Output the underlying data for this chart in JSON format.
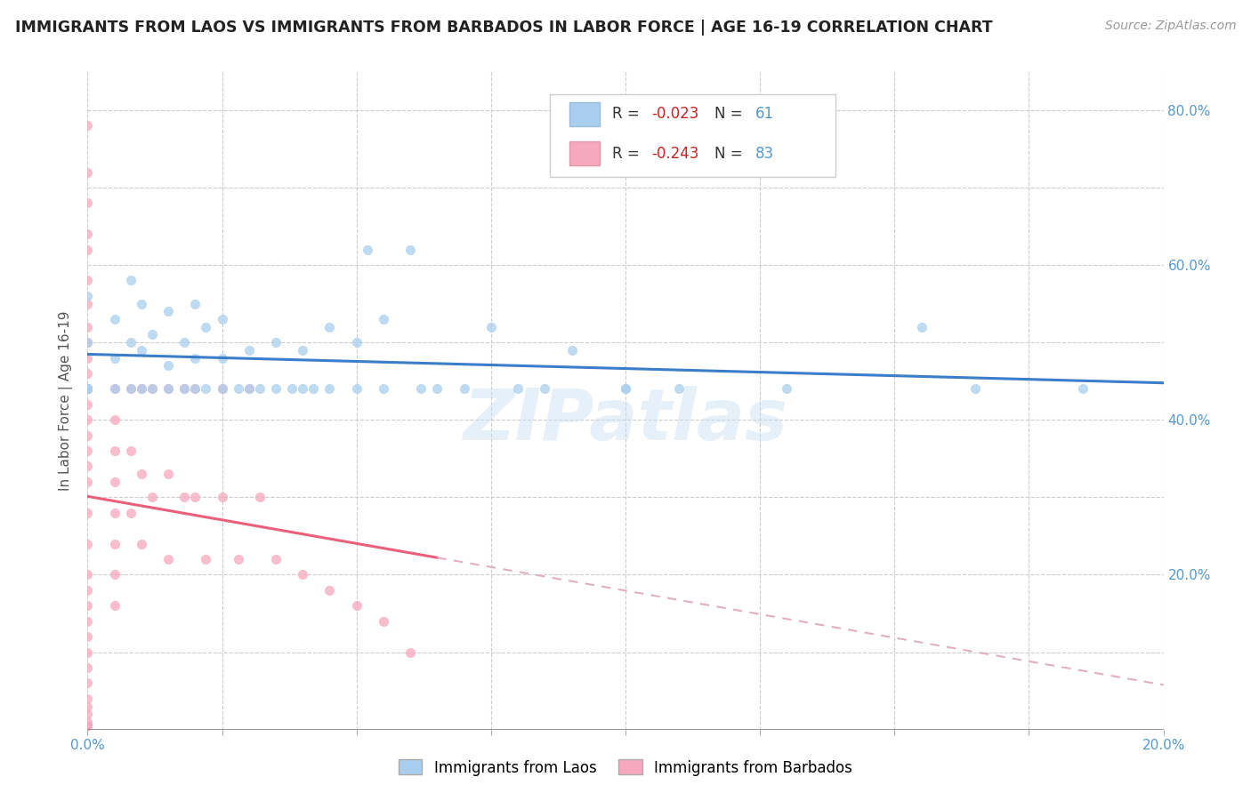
{
  "title": "IMMIGRANTS FROM LAOS VS IMMIGRANTS FROM BARBADOS IN LABOR FORCE | AGE 16-19 CORRELATION CHART",
  "source": "Source: ZipAtlas.com",
  "ylabel": "In Labor Force | Age 16-19",
  "xlim": [
    0.0,
    0.2
  ],
  "ylim": [
    0.0,
    0.85
  ],
  "xticks": [
    0.0,
    0.025,
    0.05,
    0.075,
    0.1,
    0.125,
    0.15,
    0.175,
    0.2
  ],
  "yticks": [
    0.0,
    0.1,
    0.2,
    0.3,
    0.4,
    0.5,
    0.6,
    0.7,
    0.8
  ],
  "xtick_labels": [
    "0.0%",
    "",
    "",
    "",
    "",
    "",
    "",
    "",
    "20.0%"
  ],
  "ytick_labels_right": [
    "",
    "",
    "20.0%",
    "",
    "40.0%",
    "",
    "60.0%",
    "",
    "80.0%"
  ],
  "laos_R": -0.023,
  "laos_N": 61,
  "barbados_R": -0.243,
  "barbados_N": 83,
  "laos_color": "#aacfee",
  "barbados_color": "#f8a8be",
  "laos_line_color": "#3a7dc9",
  "barbados_line_color": "#e8607a",
  "barbados_dash_color": "#e0b0c0",
  "watermark": "ZIPatlas",
  "legend_label_laos": "Immigrants from Laos",
  "legend_label_barbados": "Immigrants from Barbados",
  "laos_x": [
    0.0,
    0.0,
    0.0,
    0.0,
    0.0,
    0.005,
    0.005,
    0.005,
    0.008,
    0.008,
    0.008,
    0.01,
    0.01,
    0.01,
    0.012,
    0.012,
    0.015,
    0.015,
    0.015,
    0.018,
    0.018,
    0.02,
    0.02,
    0.02,
    0.022,
    0.022,
    0.025,
    0.025,
    0.025,
    0.028,
    0.03,
    0.03,
    0.032,
    0.035,
    0.035,
    0.038,
    0.04,
    0.04,
    0.042,
    0.045,
    0.045,
    0.05,
    0.05,
    0.052,
    0.055,
    0.055,
    0.06,
    0.062,
    0.065,
    0.07,
    0.075,
    0.08,
    0.085,
    0.09,
    0.1,
    0.1,
    0.11,
    0.13,
    0.155,
    0.165,
    0.185
  ],
  "laos_y": [
    0.44,
    0.44,
    0.44,
    0.5,
    0.56,
    0.44,
    0.48,
    0.53,
    0.44,
    0.5,
    0.58,
    0.44,
    0.49,
    0.55,
    0.44,
    0.51,
    0.44,
    0.47,
    0.54,
    0.44,
    0.5,
    0.44,
    0.48,
    0.55,
    0.44,
    0.52,
    0.44,
    0.48,
    0.53,
    0.44,
    0.44,
    0.49,
    0.44,
    0.44,
    0.5,
    0.44,
    0.44,
    0.49,
    0.44,
    0.44,
    0.52,
    0.44,
    0.5,
    0.62,
    0.44,
    0.53,
    0.62,
    0.44,
    0.44,
    0.44,
    0.52,
    0.44,
    0.44,
    0.49,
    0.44,
    0.44,
    0.44,
    0.44,
    0.52,
    0.44,
    0.44
  ],
  "barbados_x": [
    0.0,
    0.0,
    0.0,
    0.0,
    0.0,
    0.0,
    0.0,
    0.0,
    0.0,
    0.0,
    0.0,
    0.0,
    0.0,
    0.0,
    0.0,
    0.0,
    0.0,
    0.0,
    0.0,
    0.0,
    0.0,
    0.0,
    0.0,
    0.0,
    0.0,
    0.0,
    0.0,
    0.0,
    0.0,
    0.0,
    0.0,
    0.0,
    0.0,
    0.0,
    0.0,
    0.0,
    0.0,
    0.0,
    0.0,
    0.0,
    0.0,
    0.0,
    0.0,
    0.0,
    0.0,
    0.0,
    0.0,
    0.0,
    0.005,
    0.005,
    0.005,
    0.005,
    0.005,
    0.005,
    0.005,
    0.005,
    0.008,
    0.008,
    0.008,
    0.01,
    0.01,
    0.01,
    0.012,
    0.012,
    0.015,
    0.015,
    0.015,
    0.018,
    0.018,
    0.02,
    0.02,
    0.022,
    0.025,
    0.025,
    0.028,
    0.03,
    0.032,
    0.035,
    0.04,
    0.045,
    0.05,
    0.055,
    0.06
  ],
  "barbados_y": [
    0.78,
    0.72,
    0.68,
    0.64,
    0.62,
    0.58,
    0.55,
    0.52,
    0.5,
    0.48,
    0.46,
    0.44,
    0.44,
    0.44,
    0.44,
    0.44,
    0.44,
    0.44,
    0.42,
    0.4,
    0.38,
    0.36,
    0.34,
    0.32,
    0.28,
    0.24,
    0.2,
    0.18,
    0.16,
    0.14,
    0.12,
    0.1,
    0.08,
    0.06,
    0.04,
    0.03,
    0.02,
    0.01,
    0.005,
    0.005,
    0.005,
    0.005,
    0.005,
    0.005,
    0.005,
    0.005,
    0.005,
    0.005,
    0.44,
    0.4,
    0.36,
    0.32,
    0.28,
    0.24,
    0.2,
    0.16,
    0.44,
    0.36,
    0.28,
    0.44,
    0.33,
    0.24,
    0.44,
    0.3,
    0.44,
    0.33,
    0.22,
    0.44,
    0.3,
    0.44,
    0.3,
    0.22,
    0.44,
    0.3,
    0.22,
    0.44,
    0.3,
    0.22,
    0.2,
    0.18,
    0.16,
    0.14,
    0.1
  ]
}
